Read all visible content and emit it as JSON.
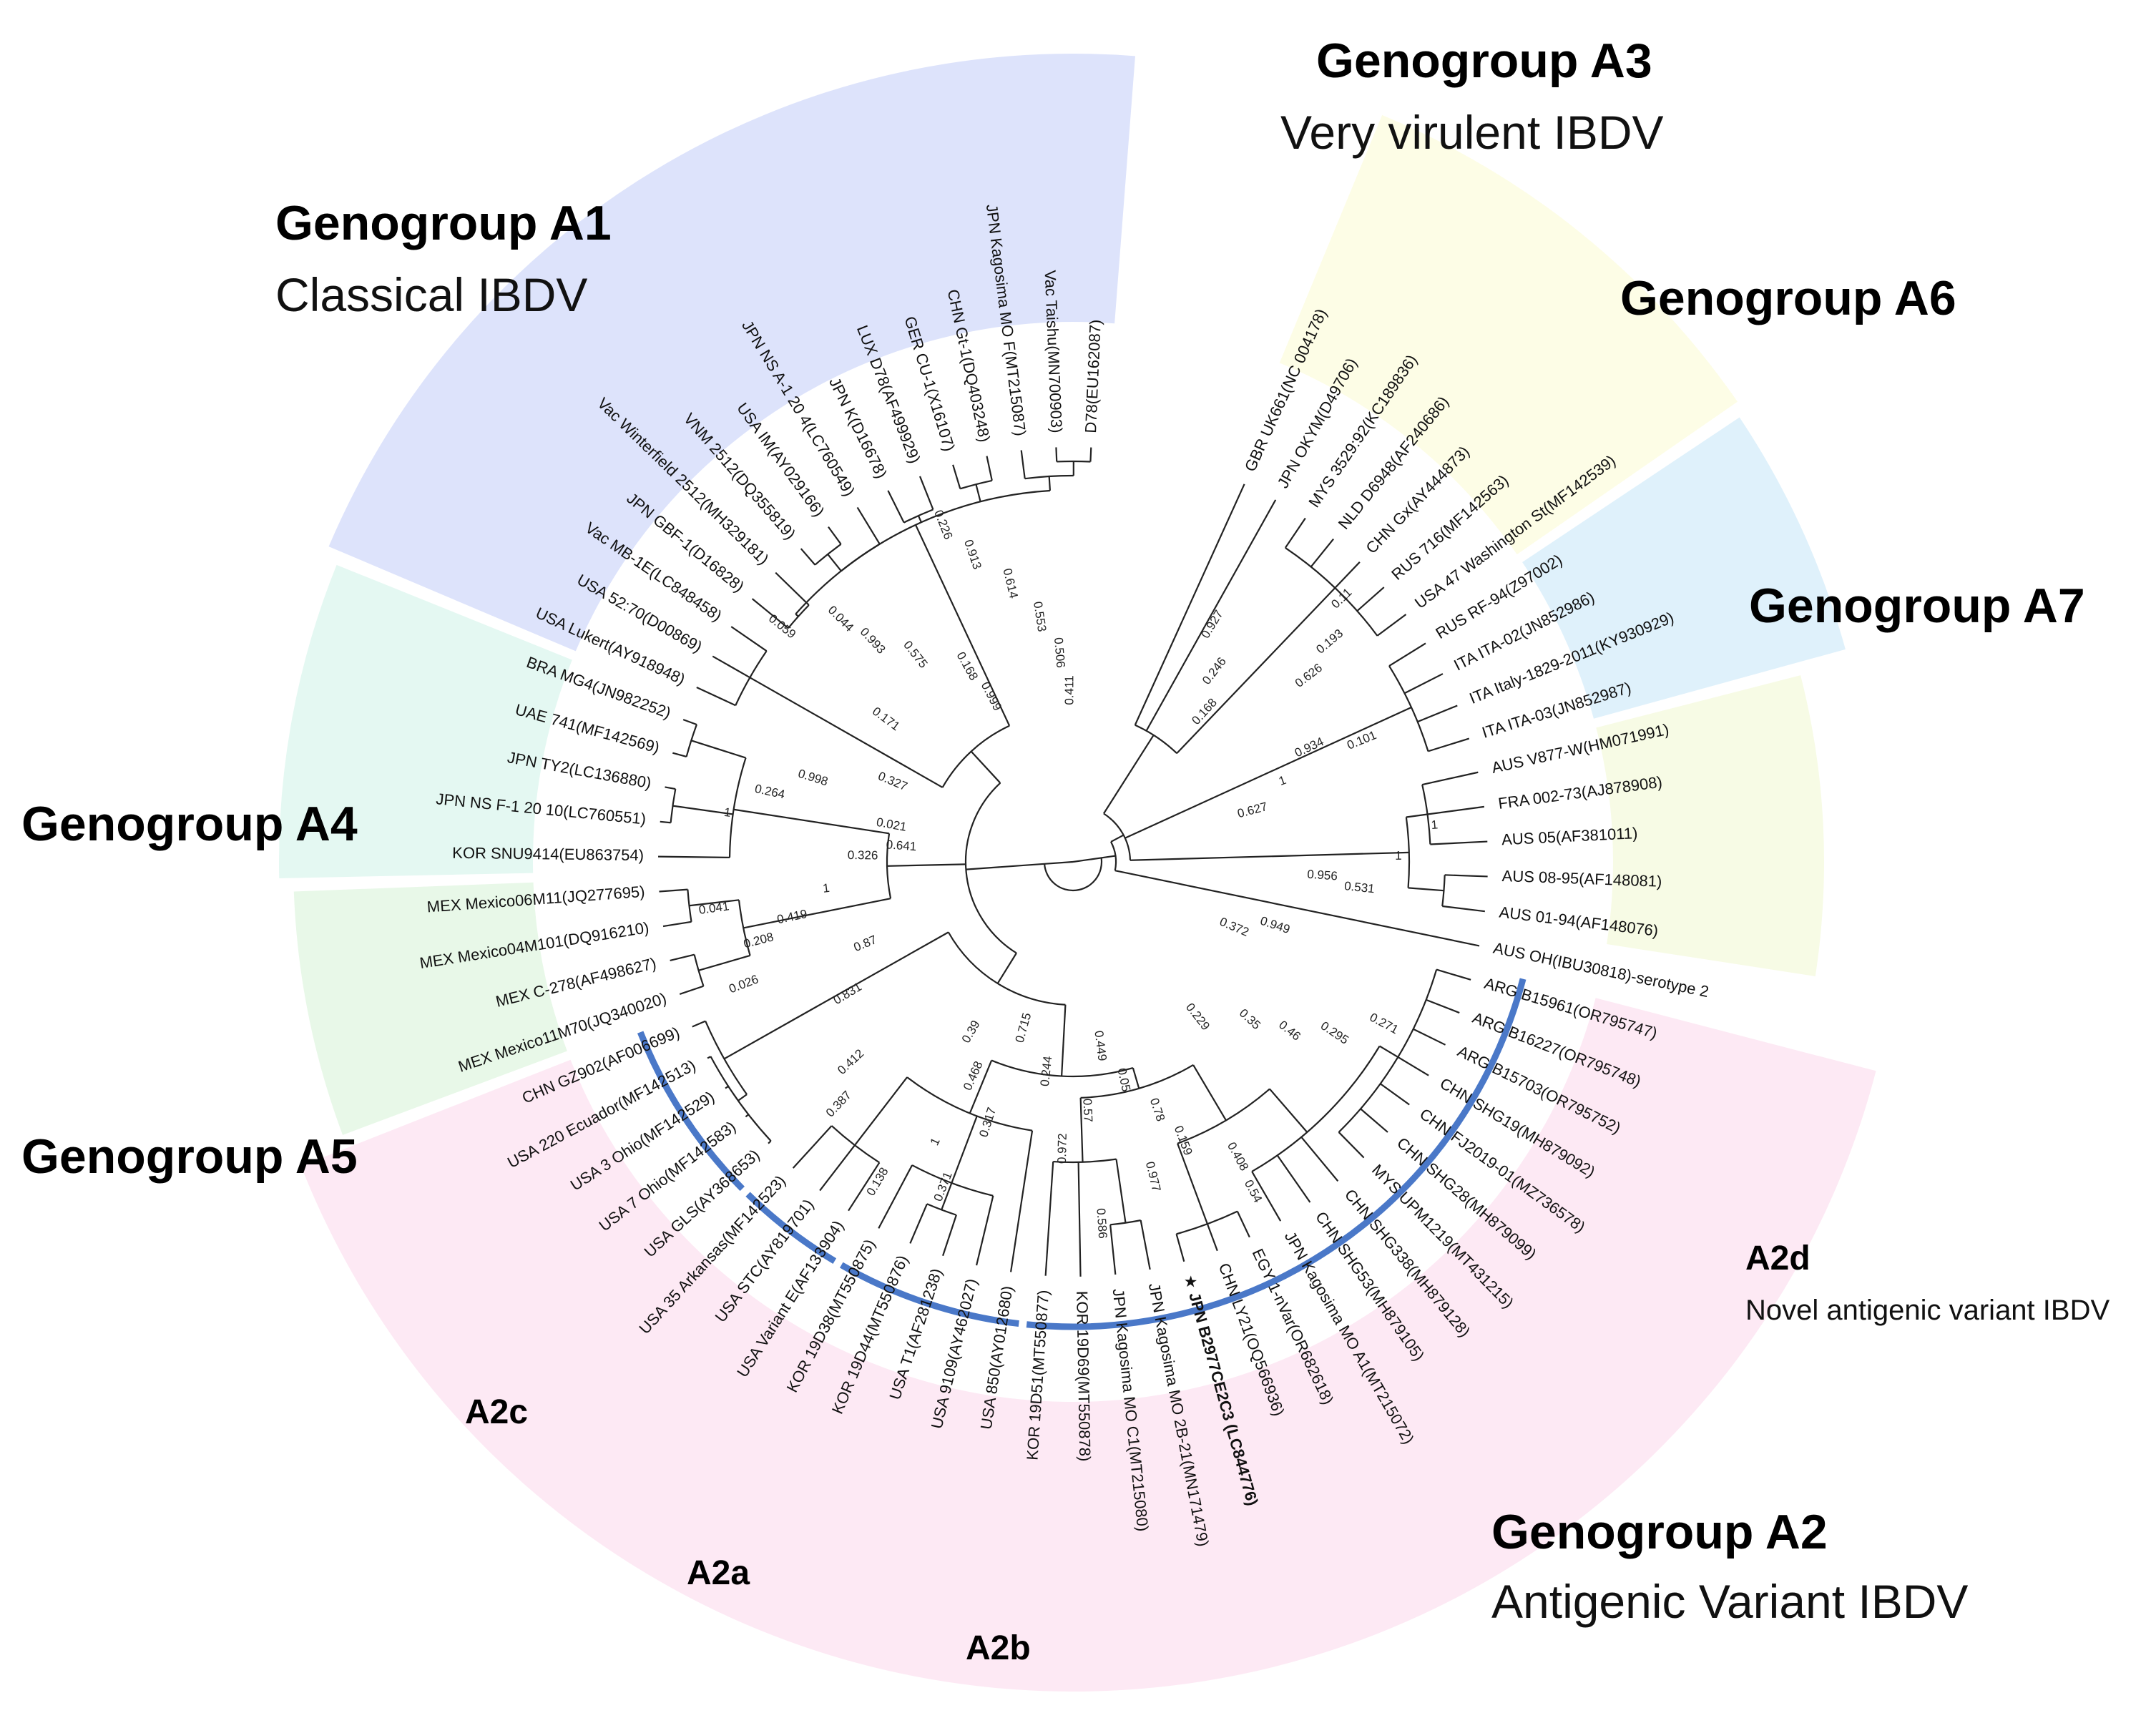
{
  "figure": {
    "colors": {
      "A1": "#dde3fb",
      "A3": "#fdfde6",
      "A6": "#dff1fb",
      "A7": "#f7fbe5",
      "A2": "#fde9f4",
      "A4": "#e4f8f2",
      "A5": "#e8f8e8",
      "clade_arc": "#4a78c8"
    },
    "groups": [
      {
        "id": "A1",
        "title": "Genogroup A1",
        "subtitle": "Classical IBDV"
      },
      {
        "id": "A3",
        "title": "Genogroup A3",
        "subtitle": "Very virulent IBDV"
      },
      {
        "id": "A6",
        "title": "Genogroup A6",
        "subtitle": ""
      },
      {
        "id": "A7",
        "title": "Genogroup A7",
        "subtitle": ""
      },
      {
        "id": "A4",
        "title": "Genogroup A4",
        "subtitle": ""
      },
      {
        "id": "A5",
        "title": "Genogroup A5",
        "subtitle": ""
      },
      {
        "id": "A2",
        "title": "Genogroup A2",
        "subtitle": "Antigenic Variant IBDV"
      }
    ],
    "subclades": [
      {
        "id": "A2a",
        "label": "A2a",
        "desc": ""
      },
      {
        "id": "A2b",
        "label": "A2b",
        "desc": ""
      },
      {
        "id": "A2c",
        "label": "A2c",
        "desc": ""
      },
      {
        "id": "A2d",
        "label": "A2d",
        "desc": "Novel antigenic variant IBDV"
      }
    ],
    "leaves": [
      {
        "label": "D78(EU162087)",
        "group": "A1",
        "highlight": false
      },
      {
        "label": "Vac Taishu(MN700903)",
        "group": "A1",
        "highlight": false
      },
      {
        "label": "JPN Kagosima MO F(MT215087)",
        "group": "A1",
        "highlight": false
      },
      {
        "label": "CHN Gt-1(DQ403248)",
        "group": "A1",
        "highlight": false
      },
      {
        "label": "GER CU-1(X16107)",
        "group": "A1",
        "highlight": false
      },
      {
        "label": "LUX D78(AF499929)",
        "group": "A1",
        "highlight": false
      },
      {
        "label": "JPN K(D16678)",
        "group": "A1",
        "highlight": false
      },
      {
        "label": "JPN NS A-1 20 4(LC760549)",
        "group": "A1",
        "highlight": false
      },
      {
        "label": "USA IM(AY029166)",
        "group": "A1",
        "highlight": false
      },
      {
        "label": "VNM 2512(DQ355819)",
        "group": "A1",
        "highlight": false
      },
      {
        "label": "Vac Winterfield 2512(MH329181)",
        "group": "A1",
        "highlight": false
      },
      {
        "label": "JPN GBF-1(D16828)",
        "group": "A1",
        "highlight": false
      },
      {
        "label": "Vac MB-1E(LC848458)",
        "group": "A1",
        "highlight": false
      },
      {
        "label": "USA 52:70(D00869)",
        "group": "A1",
        "highlight": false
      },
      {
        "label": "USA Lukert(AY918948)",
        "group": "A1",
        "highlight": false
      },
      {
        "label": "BRA MG4(JN982252)",
        "group": "A4",
        "highlight": false
      },
      {
        "label": "UAE 741(MF142569)",
        "group": "A4",
        "highlight": false
      },
      {
        "label": "JPN TY2(LC136880)",
        "group": "A4",
        "highlight": false
      },
      {
        "label": "JPN NS F-1 20 10(LC760551)",
        "group": "A4",
        "highlight": false
      },
      {
        "label": "KOR SNU9414(EU863754)",
        "group": "A4",
        "highlight": false
      },
      {
        "label": "MEX Mexico06M11(JQ277695)",
        "group": "A5",
        "highlight": false
      },
      {
        "label": "MEX Mexico04M101(DQ916210)",
        "group": "A5",
        "highlight": false
      },
      {
        "label": "MEX C-278(AF498627)",
        "group": "A5",
        "highlight": false
      },
      {
        "label": "MEX Mexico11M70(JQ340020)",
        "group": "A5",
        "highlight": false
      },
      {
        "label": "CHN GZ902(AF006699)",
        "group": "A2c",
        "highlight": false
      },
      {
        "label": "USA 220 Ecuador(MF142513)",
        "group": "A2c",
        "highlight": false
      },
      {
        "label": "USA 3 Ohio(MF142529)",
        "group": "A2c",
        "highlight": false
      },
      {
        "label": "USA 7 Ohio(MF142583)",
        "group": "A2c",
        "highlight": false
      },
      {
        "label": "USA GLS(AY368653)",
        "group": "A2c",
        "highlight": false
      },
      {
        "label": "USA 35 Arkansas(MF142523)",
        "group": "A2a",
        "highlight": false
      },
      {
        "label": "USA STC(AY819701)",
        "group": "A2a",
        "highlight": false
      },
      {
        "label": "USA Variant E(AF133904)",
        "group": "A2a",
        "highlight": false
      },
      {
        "label": "KOR 19D38(MT550875)",
        "group": "A2b",
        "highlight": false
      },
      {
        "label": "KOR 19D44(MT550876)",
        "group": "A2b",
        "highlight": false
      },
      {
        "label": "USA T1(AF281238)",
        "group": "A2b",
        "highlight": false
      },
      {
        "label": "USA 9109(AY462027)",
        "group": "A2b",
        "highlight": false
      },
      {
        "label": "USA 850(AY012680)",
        "group": "A2b",
        "highlight": false
      },
      {
        "label": "KOR 19D51(MT550877)",
        "group": "A2d",
        "highlight": false
      },
      {
        "label": "KOR 19D69(MT550878)",
        "group": "A2d",
        "highlight": false
      },
      {
        "label": "JPN Kagosima MO C1(MT215080)",
        "group": "A2d",
        "highlight": false
      },
      {
        "label": "JPN Kagosima MO 2B-21(MN171479)",
        "group": "A2d",
        "highlight": false
      },
      {
        "label": "★ JPN B2977CE2C3 (LC844776)",
        "group": "A2d",
        "highlight": true
      },
      {
        "label": "CHN LY21(OQ566936)",
        "group": "A2d",
        "highlight": false
      },
      {
        "label": "EGY 1-nVar(OR682618)",
        "group": "A2d",
        "highlight": false
      },
      {
        "label": "JPN Kagosima MO A1(MT215072)",
        "group": "A2d",
        "highlight": false
      },
      {
        "label": "CHN SHG53(MH879105)",
        "group": "A2d",
        "highlight": false
      },
      {
        "label": "CHN SHG338(MH879128)",
        "group": "A2d",
        "highlight": false
      },
      {
        "label": "MYS UPM1219(MT431215)",
        "group": "A2d",
        "highlight": false
      },
      {
        "label": "CHN SHG28(MH879099)",
        "group": "A2d",
        "highlight": false
      },
      {
        "label": "CHN FJ2019-01(MZ736578)",
        "group": "A2d",
        "highlight": false
      },
      {
        "label": "CHN SHG19(MH879092)",
        "group": "A2d",
        "highlight": false
      },
      {
        "label": "ARG B15703(OR795752)",
        "group": "A2d",
        "highlight": false
      },
      {
        "label": "ARG B16227(OR795748)",
        "group": "A2d",
        "highlight": false
      },
      {
        "label": "ARG B15961(OR795747)",
        "group": "A2d",
        "highlight": false
      },
      {
        "label": "AUS OH(IBU30818)-serotype 2",
        "group": "outgroup",
        "highlight": false
      },
      {
        "label": "AUS 01-94(AF148076)",
        "group": "A7",
        "highlight": false
      },
      {
        "label": "AUS 08-95(AF148081)",
        "group": "A7",
        "highlight": false
      },
      {
        "label": "AUS 05(AF381011)",
        "group": "A7",
        "highlight": false
      },
      {
        "label": "FRA 002-73(AJ878908)",
        "group": "A7",
        "highlight": false
      },
      {
        "label": "AUS V877-W(HM071991)",
        "group": "A7",
        "highlight": false
      },
      {
        "label": "ITA ITA-03(JN852987)",
        "group": "A6",
        "highlight": false
      },
      {
        "label": "ITA Italy-1829-2011(KY930929)",
        "group": "A6",
        "highlight": false
      },
      {
        "label": "ITA ITA-02(JN852986)",
        "group": "A6",
        "highlight": false
      },
      {
        "label": "RUS RF-94(Z97002)",
        "group": "A6",
        "highlight": false
      },
      {
        "label": "USA 47 Washington St(MF142539)",
        "group": "A3",
        "highlight": false
      },
      {
        "label": "RUS 716(MF142563)",
        "group": "A3",
        "highlight": false
      },
      {
        "label": "CHN Gx(AY444873)",
        "group": "A3",
        "highlight": false
      },
      {
        "label": "NLD D6948(AF240686)",
        "group": "A3",
        "highlight": false
      },
      {
        "label": "MYS 3529:92(KC189836)",
        "group": "A3",
        "highlight": false
      },
      {
        "label": "JPN OKYM(D49706)",
        "group": "A3",
        "highlight": false
      },
      {
        "label": "GBR UK661(NC 004178)",
        "group": "A3",
        "highlight": false
      }
    ],
    "bootstrap": [
      {
        "value": "0.411",
        "leaf": 0.5
      },
      {
        "value": "0.506",
        "leaf": 1.5
      },
      {
        "value": "0.553",
        "leaf": 2.3
      },
      {
        "value": "0.614",
        "leaf": 3.3
      },
      {
        "value": "0.913",
        "leaf": 4.4
      },
      {
        "value": "0.226",
        "leaf": 5.0
      },
      {
        "value": "0.999",
        "leaf": 6.2
      },
      {
        "value": "0.168",
        "leaf": 6.6
      },
      {
        "value": "0.575",
        "leaf": 8.4
      },
      {
        "value": "0.993",
        "leaf": 9.4
      },
      {
        "value": "0.044",
        "leaf": 9.7
      },
      {
        "value": "0.059",
        "leaf": 11.2
      },
      {
        "value": "0.327",
        "leaf": 14.4
      },
      {
        "value": "0.171",
        "leaf": 11.6
      },
      {
        "value": "0.998",
        "leaf": 15.6
      },
      {
        "value": "0.264",
        "leaf": 16.6
      },
      {
        "value": "1",
        "leaf": 17.6
      },
      {
        "value": "0.641",
        "leaf": 18.3
      },
      {
        "value": "0.326",
        "leaf": 19.0
      },
      {
        "value": "1",
        "leaf": 20.6
      },
      {
        "value": "0.419",
        "leaf": 21.6
      },
      {
        "value": "0.208",
        "leaf": 22.2
      },
      {
        "value": "0.041",
        "leaf": 20.8
      },
      {
        "value": "0.021",
        "leaf": 17.0
      },
      {
        "value": "0.87",
        "leaf": 23.8
      },
      {
        "value": "0.831",
        "leaf": 25.6
      },
      {
        "value": "0.412",
        "leaf": 28.0
      },
      {
        "value": "0.387",
        "leaf": 28.8
      },
      {
        "value": "0.138",
        "leaf": 31.4
      },
      {
        "value": "0.39",
        "leaf": 31.6
      },
      {
        "value": "0.468",
        "leaf": 32.8
      },
      {
        "value": "0.317",
        "leaf": 34.2
      },
      {
        "value": "1",
        "leaf": 32.5
      },
      {
        "value": "0.371",
        "leaf": 33.4
      },
      {
        "value": "0.715",
        "leaf": 34.6
      },
      {
        "value": "0.244",
        "leaf": 36.5
      },
      {
        "value": "0.57",
        "leaf": 38.3
      },
      {
        "value": "0.972",
        "leaf": 37.5
      },
      {
        "value": "0.977",
        "leaf": 40.6
      },
      {
        "value": "0.586",
        "leaf": 38.6
      },
      {
        "value": "0.449",
        "leaf": 39.3
      },
      {
        "value": "0.05",
        "leaf": 40.3
      },
      {
        "value": "0.78",
        "leaf": 41.5
      },
      {
        "value": "0.159",
        "leaf": 42.1
      },
      {
        "value": "0.408",
        "leaf": 43.7
      },
      {
        "value": "0.54",
        "leaf": 43.6
      },
      {
        "value": "0.229",
        "leaf": 45.6
      },
      {
        "value": "0.35",
        "leaf": 47.6
      },
      {
        "value": "0.46",
        "leaf": 48.4
      },
      {
        "value": "0.295",
        "leaf": 49.4
      },
      {
        "value": "0.271",
        "leaf": 50.6
      },
      {
        "value": "0.372",
        "leaf": 51.6
      },
      {
        "value": "0.949",
        "leaf": 52.6
      },
      {
        "value": "0.956",
        "leaf": 55.6
      },
      {
        "value": "0.531",
        "leaf": 55.2
      },
      {
        "value": "1",
        "leaf": 56.5
      },
      {
        "value": "1",
        "leaf": 57.5
      },
      {
        "value": "0.627",
        "leaf": 59.5
      },
      {
        "value": "1",
        "leaf": 60.6
      },
      {
        "value": "0.934",
        "leaf": 61.6
      },
      {
        "value": "0.626",
        "leaf": 64.2
      },
      {
        "value": "0.193",
        "leaf": 64.7
      },
      {
        "value": "0.11",
        "leaf": 65.5
      },
      {
        "value": "0.168",
        "leaf": 66.3
      },
      {
        "value": "0.246",
        "leaf": 67.3
      },
      {
        "value": "0.927",
        "leaf": 68.6
      },
      {
        "value": "0.101",
        "leaf": 61.0
      },
      {
        "value": "0.026",
        "leaf": 23.5
      }
    ]
  }
}
